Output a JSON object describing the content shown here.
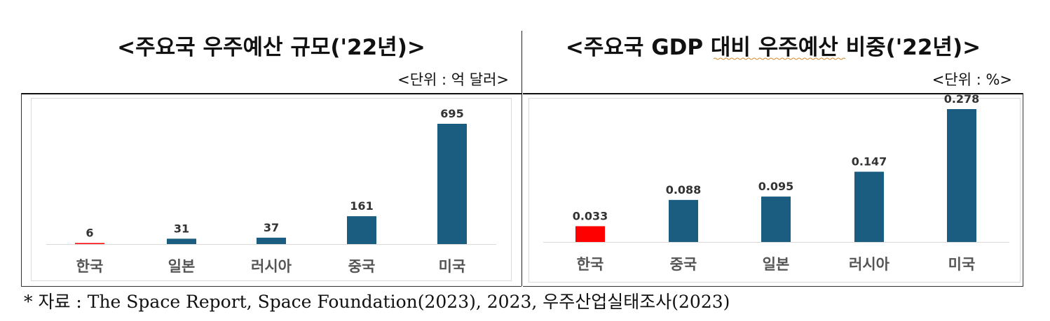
{
  "left_panel": {
    "title": "<주요국 우주예산 규모('22년)>",
    "unit": "<단위 : 억 달러>"
  },
  "right_panel": {
    "title": "<주요국 GDP 대비 우주예산 비중('22년)>",
    "unit": "<단위 : %>"
  },
  "footnote": "* 자료 : The Space Report, Space Foundation(2023), 2023, 우주산업실태조사(2023)",
  "colors": {
    "bar": "#1a5d80",
    "highlight": "#ff0000",
    "axis": "#d9d9d9"
  },
  "chart_data": [
    {
      "type": "bar",
      "title": "<주요국 우주예산 규모('22년)>",
      "unit": "<단위 : 억 달러>",
      "categories": [
        "한국",
        "일본",
        "러시아",
        "중국",
        "미국"
      ],
      "values": [
        6,
        31,
        37,
        161,
        695
      ],
      "value_labels": [
        "6",
        "31",
        "37",
        "161",
        "695"
      ],
      "highlight_index": 0,
      "ylim": [
        0,
        750
      ],
      "grid": false
    },
    {
      "type": "bar",
      "title": "<주요국 GDP 대비 우주예산 비중('22년)>",
      "unit": "<단위 : %>",
      "categories": [
        "한국",
        "중국",
        "일본",
        "러시아",
        "미국"
      ],
      "values": [
        0.033,
        0.088,
        0.095,
        0.147,
        0.278
      ],
      "value_labels": [
        "0.033",
        "0.088",
        "0.095",
        "0.147",
        "0.278"
      ],
      "highlight_index": 0,
      "ylim": [
        0,
        0.3
      ],
      "grid": false
    }
  ]
}
